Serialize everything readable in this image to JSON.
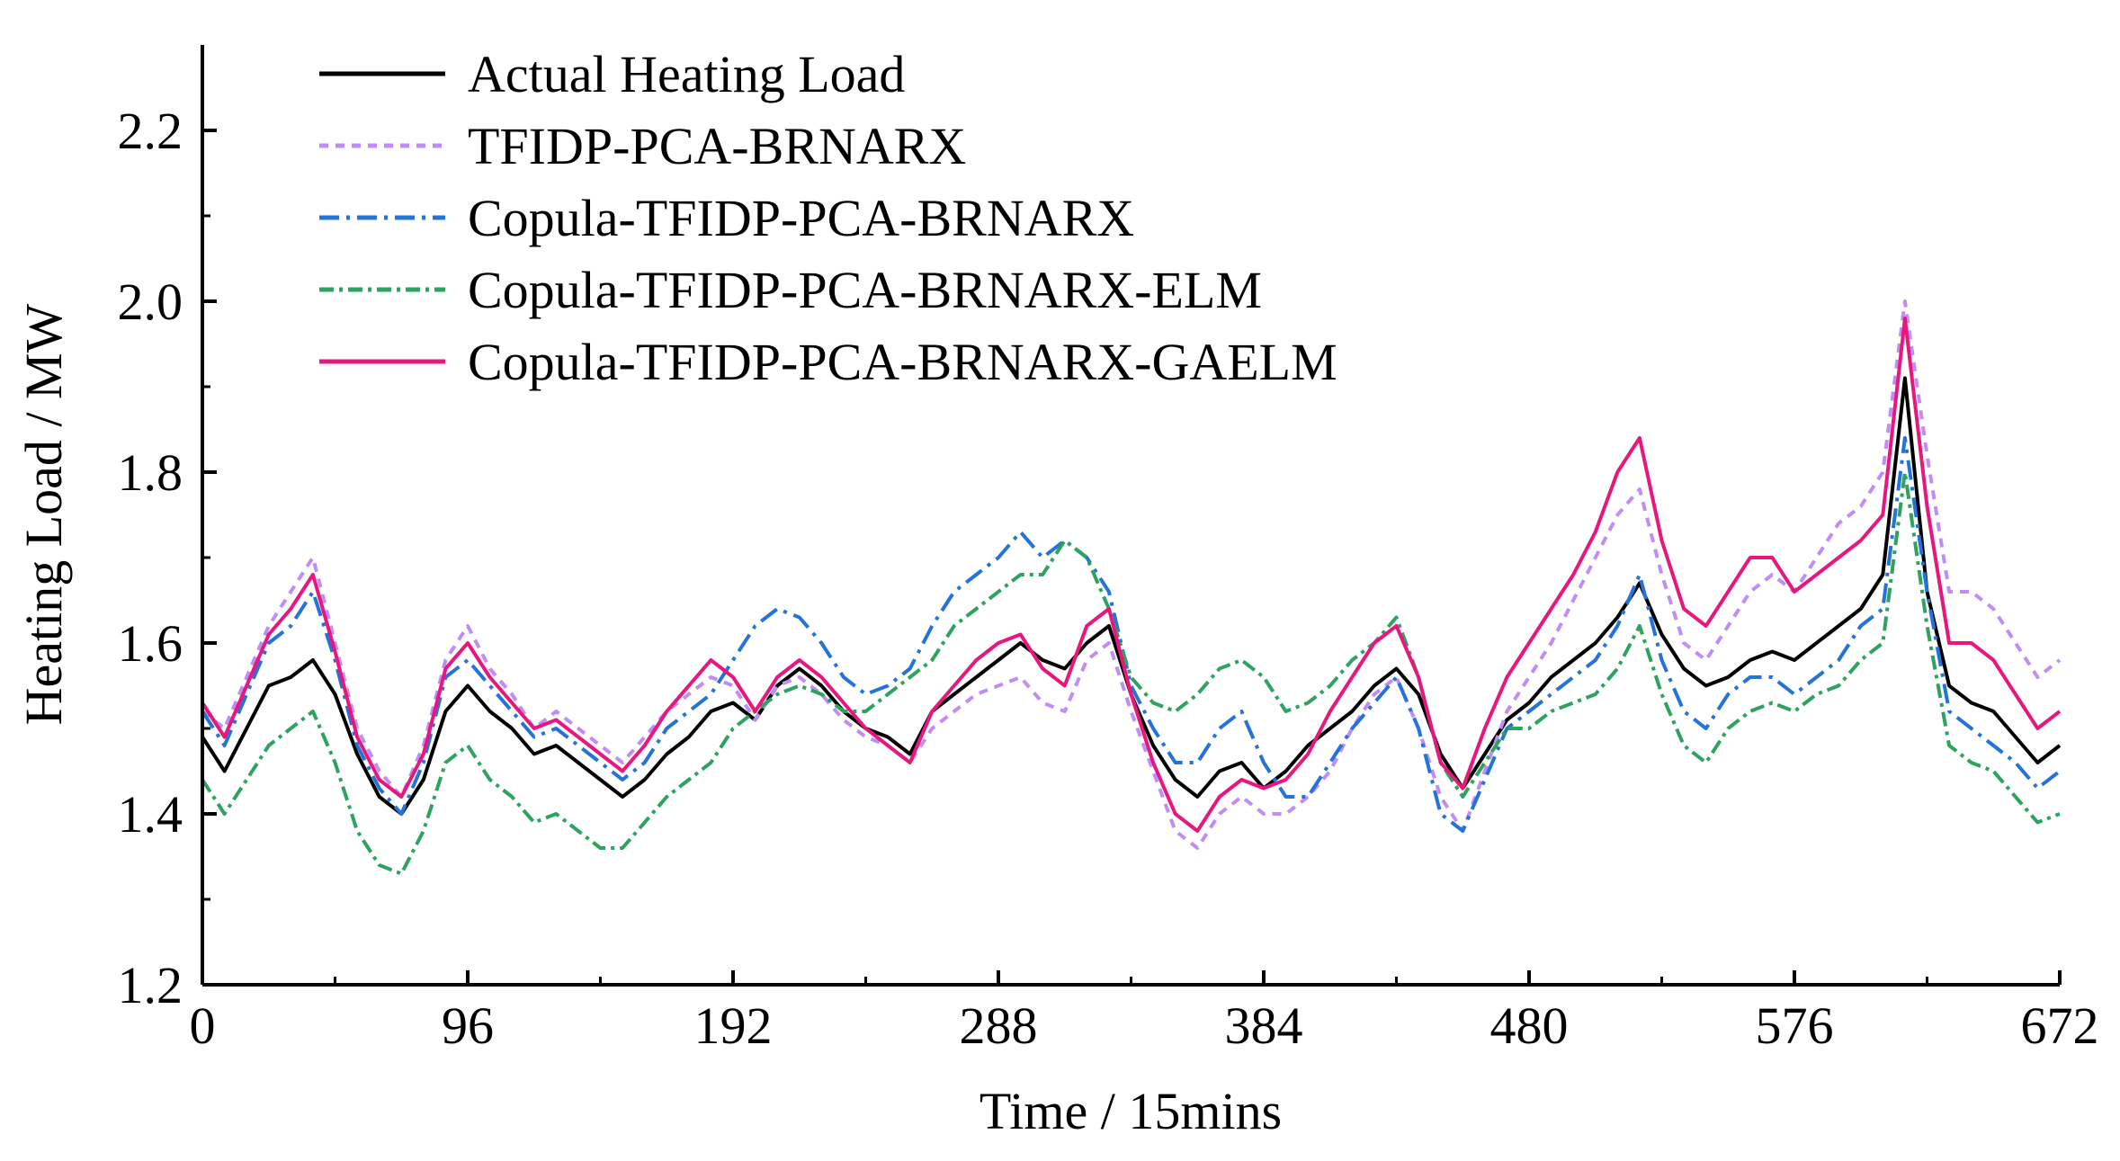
{
  "chart_data": {
    "type": "line",
    "title": "",
    "xlabel": "Time / 15mins",
    "ylabel": "Heating Load / MW",
    "xlim": [
      0,
      672
    ],
    "ylim": [
      1.2,
      2.3
    ],
    "x_ticks": [
      "0",
      "96",
      "192",
      "288",
      "384",
      "480",
      "576",
      "672"
    ],
    "x_tick_values": [
      0,
      96,
      192,
      288,
      384,
      480,
      576,
      672
    ],
    "y_ticks": [
      "1.2",
      "1.4",
      "1.6",
      "1.8",
      "2.0",
      "2.2"
    ],
    "y_tick_values": [
      1.2,
      1.4,
      1.6,
      1.8,
      2.0,
      2.2
    ],
    "legend_position": "top-left",
    "x": [
      0,
      8,
      16,
      24,
      32,
      40,
      48,
      56,
      64,
      72,
      80,
      88,
      96,
      104,
      112,
      120,
      128,
      136,
      144,
      152,
      160,
      168,
      176,
      184,
      192,
      200,
      208,
      216,
      224,
      232,
      240,
      248,
      256,
      264,
      272,
      280,
      288,
      296,
      304,
      312,
      320,
      328,
      336,
      344,
      352,
      360,
      368,
      376,
      384,
      392,
      400,
      408,
      416,
      424,
      432,
      440,
      448,
      456,
      464,
      472,
      480,
      488,
      496,
      504,
      512,
      520,
      528,
      536,
      544,
      552,
      560,
      568,
      576,
      584,
      592,
      600,
      608,
      616,
      624,
      632,
      640,
      648,
      656,
      664,
      672
    ],
    "series": [
      {
        "name": "Actual Heating Load",
        "color": "#000000",
        "dash": "solid",
        "values": [
          1.49,
          1.45,
          1.5,
          1.55,
          1.56,
          1.58,
          1.54,
          1.47,
          1.42,
          1.4,
          1.44,
          1.52,
          1.55,
          1.52,
          1.5,
          1.47,
          1.48,
          1.46,
          1.44,
          1.42,
          1.44,
          1.47,
          1.49,
          1.52,
          1.53,
          1.51,
          1.55,
          1.57,
          1.55,
          1.52,
          1.5,
          1.49,
          1.47,
          1.52,
          1.54,
          1.56,
          1.58,
          1.6,
          1.58,
          1.57,
          1.6,
          1.62,
          1.54,
          1.48,
          1.44,
          1.42,
          1.45,
          1.46,
          1.43,
          1.45,
          1.48,
          1.5,
          1.52,
          1.55,
          1.57,
          1.54,
          1.47,
          1.43,
          1.47,
          1.51,
          1.53,
          1.56,
          1.58,
          1.6,
          1.63,
          1.67,
          1.61,
          1.57,
          1.55,
          1.56,
          1.58,
          1.59,
          1.58,
          1.6,
          1.62,
          1.64,
          1.68,
          1.91,
          1.66,
          1.55,
          1.53,
          1.52,
          1.49,
          1.46,
          1.48
        ]
      },
      {
        "name": "TFIDP-PCA-BRNARX",
        "color": "#c08cf6",
        "dash": "10,8",
        "values": [
          1.52,
          1.5,
          1.56,
          1.62,
          1.66,
          1.7,
          1.6,
          1.5,
          1.45,
          1.42,
          1.48,
          1.58,
          1.62,
          1.57,
          1.54,
          1.5,
          1.52,
          1.5,
          1.48,
          1.46,
          1.49,
          1.52,
          1.54,
          1.56,
          1.55,
          1.51,
          1.55,
          1.56,
          1.54,
          1.51,
          1.49,
          1.48,
          1.46,
          1.5,
          1.52,
          1.54,
          1.55,
          1.56,
          1.53,
          1.52,
          1.58,
          1.6,
          1.52,
          1.45,
          1.38,
          1.36,
          1.4,
          1.42,
          1.4,
          1.4,
          1.42,
          1.45,
          1.5,
          1.54,
          1.56,
          1.5,
          1.42,
          1.38,
          1.45,
          1.52,
          1.56,
          1.6,
          1.65,
          1.7,
          1.75,
          1.78,
          1.68,
          1.6,
          1.58,
          1.62,
          1.66,
          1.68,
          1.66,
          1.7,
          1.74,
          1.76,
          1.8,
          2.0,
          1.82,
          1.66,
          1.66,
          1.64,
          1.6,
          1.56,
          1.58
        ]
      },
      {
        "name": "Copula-TFIDP-PCA-BRNARX",
        "color": "#2473d8",
        "dash": "22,8,4,8",
        "values": [
          1.52,
          1.48,
          1.54,
          1.6,
          1.62,
          1.66,
          1.58,
          1.48,
          1.43,
          1.4,
          1.46,
          1.56,
          1.58,
          1.55,
          1.52,
          1.49,
          1.5,
          1.48,
          1.46,
          1.44,
          1.46,
          1.5,
          1.52,
          1.54,
          1.58,
          1.62,
          1.64,
          1.63,
          1.6,
          1.56,
          1.54,
          1.55,
          1.57,
          1.62,
          1.66,
          1.68,
          1.7,
          1.73,
          1.7,
          1.72,
          1.7,
          1.66,
          1.55,
          1.5,
          1.46,
          1.46,
          1.5,
          1.52,
          1.46,
          1.42,
          1.42,
          1.46,
          1.5,
          1.53,
          1.56,
          1.5,
          1.4,
          1.38,
          1.44,
          1.5,
          1.52,
          1.54,
          1.56,
          1.58,
          1.62,
          1.68,
          1.58,
          1.52,
          1.5,
          1.54,
          1.56,
          1.56,
          1.54,
          1.56,
          1.58,
          1.62,
          1.64,
          1.84,
          1.66,
          1.52,
          1.5,
          1.48,
          1.46,
          1.43,
          1.45
        ]
      },
      {
        "name": "Copula-TFIDP-PCA-BRNARX-ELM",
        "color": "#2ea35f",
        "dash": "16,6,4,6",
        "values": [
          1.44,
          1.4,
          1.44,
          1.48,
          1.5,
          1.52,
          1.46,
          1.38,
          1.34,
          1.33,
          1.38,
          1.46,
          1.48,
          1.44,
          1.42,
          1.39,
          1.4,
          1.38,
          1.36,
          1.36,
          1.39,
          1.42,
          1.44,
          1.46,
          1.5,
          1.52,
          1.54,
          1.55,
          1.54,
          1.52,
          1.52,
          1.54,
          1.56,
          1.58,
          1.62,
          1.64,
          1.66,
          1.68,
          1.68,
          1.72,
          1.7,
          1.64,
          1.56,
          1.53,
          1.52,
          1.54,
          1.57,
          1.58,
          1.56,
          1.52,
          1.53,
          1.55,
          1.58,
          1.6,
          1.63,
          1.56,
          1.46,
          1.42,
          1.46,
          1.5,
          1.5,
          1.52,
          1.53,
          1.54,
          1.57,
          1.62,
          1.54,
          1.48,
          1.46,
          1.5,
          1.52,
          1.53,
          1.52,
          1.54,
          1.55,
          1.58,
          1.6,
          1.8,
          1.62,
          1.48,
          1.46,
          1.45,
          1.42,
          1.39,
          1.4
        ]
      },
      {
        "name": "Copula-TFIDP-PCA-BRNARX-GAELM",
        "color": "#e8177d",
        "dash": "solid",
        "values": [
          1.53,
          1.49,
          1.55,
          1.61,
          1.64,
          1.68,
          1.59,
          1.49,
          1.44,
          1.42,
          1.47,
          1.57,
          1.6,
          1.56,
          1.53,
          1.5,
          1.51,
          1.49,
          1.47,
          1.45,
          1.48,
          1.52,
          1.55,
          1.58,
          1.56,
          1.52,
          1.56,
          1.58,
          1.56,
          1.53,
          1.5,
          1.48,
          1.46,
          1.52,
          1.55,
          1.58,
          1.6,
          1.61,
          1.57,
          1.55,
          1.62,
          1.64,
          1.54,
          1.46,
          1.4,
          1.38,
          1.42,
          1.44,
          1.43,
          1.44,
          1.47,
          1.52,
          1.56,
          1.6,
          1.62,
          1.56,
          1.46,
          1.43,
          1.5,
          1.56,
          1.6,
          1.64,
          1.68,
          1.73,
          1.8,
          1.84,
          1.72,
          1.64,
          1.62,
          1.66,
          1.7,
          1.7,
          1.66,
          1.68,
          1.7,
          1.72,
          1.75,
          1.98,
          1.76,
          1.6,
          1.6,
          1.58,
          1.54,
          1.5,
          1.52
        ]
      }
    ]
  }
}
